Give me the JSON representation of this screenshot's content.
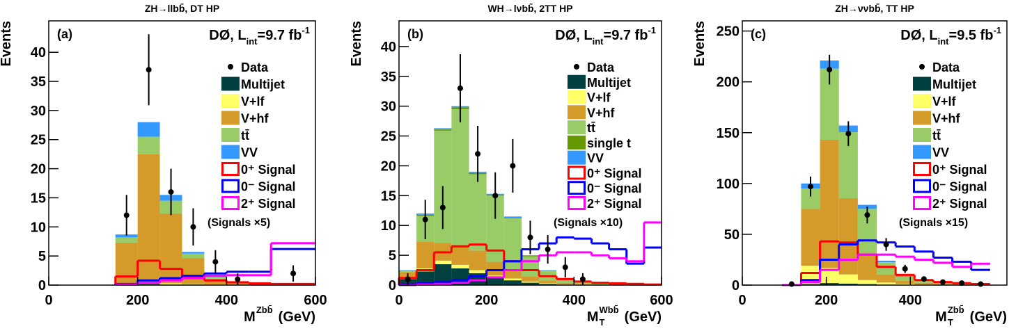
{
  "chart_data": [
    {
      "type": "histogram",
      "title": "ZH→llbb̄, DT HP",
      "panel_label": "(a)",
      "lumi": {
        "main": "DØ, L",
        "sub": "int",
        "value": "=9.7 fb",
        "sup": "-1"
      },
      "note": "(Signals ×5)",
      "y_label": "Events",
      "x_label": {
        "main": "M",
        "sup": "Zbb̄",
        "unit": "(GeV)"
      },
      "xlim": [
        0,
        600
      ],
      "xticks": [
        0,
        200,
        400,
        600
      ],
      "ylim": [
        0,
        45.4
      ],
      "yticks": [
        0,
        5,
        10,
        15,
        20,
        25,
        30,
        35,
        40
      ],
      "bins": [
        150,
        200,
        250,
        300,
        350,
        400,
        450,
        500,
        600
      ],
      "series": [
        {
          "name": "Multijet",
          "color": "#004040",
          "style": "stack",
          "values": [
            0.1,
            0.2,
            0.1,
            0.1,
            0.05,
            0,
            0,
            0
          ]
        },
        {
          "name": "V+lf",
          "color": "#ffff66",
          "style": "stack",
          "values": [
            0.2,
            0.3,
            0.2,
            0.1,
            0.05,
            0.05,
            0,
            0
          ]
        },
        {
          "name": "V+hf",
          "color": "#d49a2a",
          "style": "stack",
          "values": [
            7.0,
            22.0,
            12.0,
            4.4,
            1.0,
            0.4,
            0.2,
            0.1
          ]
        },
        {
          "name": "tt̄",
          "color": "#99cc66",
          "style": "stack",
          "values": [
            0.9,
            3.0,
            2.2,
            0.8,
            0.3,
            0.1,
            0.1,
            0.05
          ]
        },
        {
          "name": "VV",
          "color": "#3399ff",
          "style": "stack",
          "values": [
            0.5,
            2.5,
            1.0,
            0.3,
            0.1,
            0.05,
            0,
            0.05
          ]
        },
        {
          "name": "0⁺ Signal",
          "color": "#ff0000",
          "style": "step",
          "values": [
            1.5,
            4.2,
            2.8,
            1.5,
            0.8,
            0.5,
            0.3,
            0.2
          ]
        },
        {
          "name": "0⁻ Signal",
          "color": "#0000ff",
          "style": "step",
          "values": [
            0.2,
            0.8,
            1.2,
            1.6,
            2.0,
            2.3,
            2.3,
            6.2
          ]
        },
        {
          "name": "2⁺ Signal",
          "color": "#ff00ff",
          "style": "step",
          "values": [
            0.1,
            0.4,
            0.8,
            1.2,
            1.6,
            1.7,
            1.7,
            7.2
          ]
        }
      ],
      "points": {
        "name": "Data",
        "color": "#000000",
        "x": [
          175,
          225,
          275,
          325,
          375,
          425,
          550
        ],
        "values": [
          12,
          37,
          16,
          10,
          4,
          1,
          2
        ],
        "errors": [
          3.5,
          6.1,
          4,
          3.2,
          2,
          1,
          1.4
        ]
      }
    },
    {
      "type": "histogram",
      "title": "WH→lνbb̄, 2TT HP",
      "panel_label": "(b)",
      "lumi": {
        "main": "DØ, L",
        "sub": "int",
        "value": "=9.7 fb",
        "sup": "-1"
      },
      "note": "(Signals ×10)",
      "y_label": "Events",
      "x_label": {
        "main": "M",
        "sub": "T",
        "sup": "Wbb̄",
        "unit": "(GeV)"
      },
      "xlim": [
        0,
        600
      ],
      "xticks": [
        0,
        200,
        400,
        600
      ],
      "ylim": [
        0,
        44.3
      ],
      "yticks": [
        0,
        5,
        10,
        15,
        20,
        25,
        30,
        35,
        40
      ],
      "bins": [
        0,
        40,
        80,
        120,
        160,
        200,
        240,
        280,
        320,
        360,
        400,
        440,
        480,
        520,
        560,
        600
      ],
      "series": [
        {
          "name": "Multijet",
          "color": "#004040",
          "style": "stack",
          "values": [
            1.0,
            2.3,
            3.5,
            2.8,
            2.0,
            1.2,
            0.8,
            0.4,
            0.2,
            0.1,
            0.05,
            0.05,
            0,
            0,
            0
          ]
        },
        {
          "name": "V+lf",
          "color": "#ffff66",
          "style": "stack",
          "values": [
            0.3,
            0.5,
            0.6,
            0.6,
            0.5,
            0.4,
            0.3,
            0.2,
            0.1,
            0.05,
            0.05,
            0,
            0,
            0,
            0
          ]
        },
        {
          "name": "V+hf",
          "color": "#d49a2a",
          "style": "stack",
          "values": [
            0.8,
            4.5,
            3.0,
            3.3,
            3.3,
            2.3,
            1.4,
            0.8,
            0.4,
            0.2,
            0.1,
            0.05,
            0.05,
            0,
            0
          ]
        },
        {
          "name": "tt̄",
          "color": "#99cc66",
          "style": "stack",
          "values": [
            0.3,
            4.3,
            18.8,
            22.8,
            12.8,
            11.1,
            8.7,
            3.4,
            1.7,
            0.8,
            0.4,
            0.2,
            0.15,
            0.1,
            0.1
          ]
        },
        {
          "name": "single t",
          "color": "#669900",
          "style": "stack",
          "values": [
            0.05,
            0.2,
            0.2,
            0.3,
            0.2,
            0.1,
            0.1,
            0.1,
            0.05,
            0.02,
            0,
            0,
            0,
            0,
            0
          ]
        },
        {
          "name": "VV",
          "color": "#3399ff",
          "style": "stack",
          "values": [
            0.05,
            0.2,
            0.2,
            0.2,
            0.2,
            0.2,
            0.2,
            0.1,
            0.05,
            0.03,
            0,
            0,
            0,
            0,
            0
          ]
        },
        {
          "name": "0⁺ Signal",
          "color": "#ff0000",
          "style": "step",
          "values": [
            1.2,
            2.5,
            5.5,
            6.5,
            6.8,
            5.8,
            4,
            2.5,
            1.5,
            1,
            0.6,
            0.4,
            0.3,
            0.2,
            0.1
          ]
        },
        {
          "name": "0⁻ Signal",
          "color": "#0000ff",
          "style": "step",
          "values": [
            0.1,
            0.3,
            0.5,
            0.8,
            1.5,
            2.5,
            4,
            6,
            7,
            8,
            7.8,
            7,
            6,
            3.6,
            6.3
          ]
        },
        {
          "name": "2⁺ Signal",
          "color": "#ff00ff",
          "style": "step",
          "values": [
            0,
            0.1,
            0.2,
            0.4,
            0.8,
            1.3,
            2.5,
            4,
            5,
            5.5,
            5.5,
            5,
            4.5,
            4,
            10.5
          ]
        }
      ],
      "points": {
        "name": "Data",
        "color": "#000000",
        "x": [
          20,
          60,
          100,
          140,
          180,
          220,
          260,
          300,
          340,
          380,
          420
        ],
        "values": [
          1,
          11,
          13,
          33,
          22,
          15,
          20,
          8,
          6,
          3,
          1
        ],
        "errors": [
          1,
          3.3,
          3.6,
          5.7,
          4.7,
          3.9,
          4.5,
          2.8,
          2.4,
          1.7,
          1
        ]
      }
    },
    {
      "type": "histogram",
      "title": "ZH→ννbb̄, TT HP",
      "panel_label": "(c)",
      "lumi": {
        "main": "DØ, L",
        "sub": "int",
        "value": "=9.5 fb",
        "sup": "-1"
      },
      "note": "(Signals ×15)",
      "y_label": "Events",
      "x_label": {
        "main": "M",
        "sub": "T",
        "sup": "Zbb̄",
        "unit": "(GeV)"
      },
      "xlim": [
        0,
        630
      ],
      "xticks": [
        0,
        200,
        400
      ],
      "ylim": [
        0,
        260
      ],
      "yticks": [
        0,
        50,
        100,
        150,
        200,
        250
      ],
      "bins": [
        95,
        140,
        185,
        230,
        275,
        320,
        365,
        410,
        455,
        500,
        545,
        590
      ],
      "series": [
        {
          "name": "Multijet",
          "color": "#004040",
          "style": "stack",
          "values": [
            0.1,
            1,
            2,
            1.5,
            1,
            0.5,
            0.3,
            0.2,
            0.1,
            0,
            0
          ]
        },
        {
          "name": "V+lf",
          "color": "#ffff66",
          "style": "stack",
          "values": [
            0.4,
            18,
            15,
            9,
            4,
            2,
            1,
            0.5,
            0.3,
            0.2,
            0.1
          ]
        },
        {
          "name": "V+hf",
          "color": "#d49a2a",
          "style": "stack",
          "values": [
            0.3,
            56,
            126,
            75,
            25,
            8,
            3,
            1.5,
            0.7,
            0.4,
            0.2
          ]
        },
        {
          "name": "tt̄",
          "color": "#99cc66",
          "style": "stack",
          "values": [
            0.1,
            20,
            70,
            65,
            45,
            12,
            4,
            2,
            1,
            0.5,
            0.3
          ]
        },
        {
          "name": "VV",
          "color": "#3399ff",
          "style": "stack",
          "values": [
            0.1,
            5,
            8,
            6.5,
            4,
            1.5,
            0.7,
            0.3,
            0.2,
            0.1,
            0.1
          ]
        },
        {
          "name": "0⁺ Signal",
          "color": "#ff0000",
          "style": "step",
          "values": [
            0,
            12,
            43,
            42,
            30,
            18,
            10,
            5,
            3,
            2,
            1
          ]
        },
        {
          "name": "0⁻ Signal",
          "color": "#0000ff",
          "style": "step",
          "values": [
            0,
            5,
            25,
            40,
            44,
            42,
            38,
            33,
            27,
            23,
            15
          ]
        },
        {
          "name": "2⁺ Signal",
          "color": "#ff00ff",
          "style": "step",
          "values": [
            0,
            3,
            15,
            25,
            30,
            30,
            28,
            25,
            22,
            18,
            21
          ]
        }
      ],
      "points": {
        "name": "Data",
        "color": "#000000",
        "x": [
          117.5,
          162.5,
          207.5,
          252.5,
          297.5,
          342.5,
          387.5,
          432.5,
          477.5,
          522.5,
          567.5
        ],
        "values": [
          1,
          97,
          212,
          149,
          69,
          40,
          16,
          6,
          3,
          2,
          1
        ],
        "errors": [
          1,
          9.8,
          14.6,
          12.2,
          8.3,
          6.3,
          4,
          2.4,
          1.7,
          1.4,
          1
        ]
      }
    }
  ]
}
